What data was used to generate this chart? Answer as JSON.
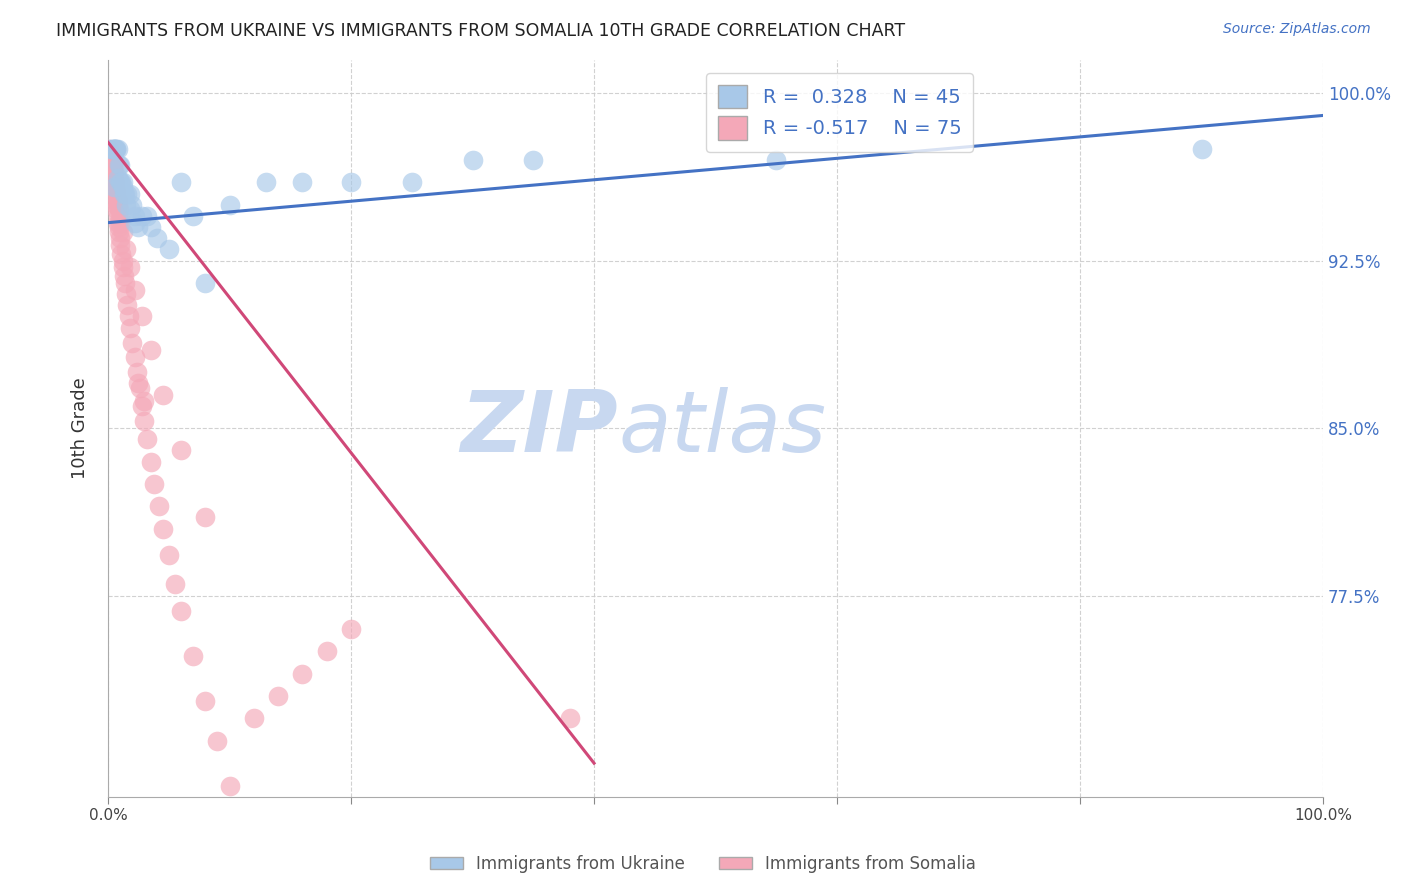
{
  "title": "IMMIGRANTS FROM UKRAINE VS IMMIGRANTS FROM SOMALIA 10TH GRADE CORRELATION CHART",
  "source": "Source: ZipAtlas.com",
  "ylabel": "10th Grade",
  "R_ukraine": 0.328,
  "N_ukraine": 45,
  "R_somalia": -0.517,
  "N_somalia": 75,
  "ukraine_color": "#a8c8e8",
  "somalia_color": "#f4a8b8",
  "ukraine_line_color": "#4472c4",
  "somalia_line_color": "#d04878",
  "watermark_zip": "ZIP",
  "watermark_atlas": "atlas",
  "watermark_color_zip": "#c8d8f0",
  "watermark_color_atlas": "#c8d8f0",
  "ytick_labels": [
    "100.0%",
    "92.5%",
    "85.0%",
    "77.5%"
  ],
  "ytick_values": [
    1.0,
    0.925,
    0.85,
    0.775
  ],
  "xmin": 0.0,
  "xmax": 1.0,
  "ymin": 0.685,
  "ymax": 1.015,
  "ukraine_x": [
    0.002,
    0.003,
    0.004,
    0.005,
    0.005,
    0.006,
    0.006,
    0.007,
    0.007,
    0.008,
    0.009,
    0.01,
    0.01,
    0.011,
    0.012,
    0.013,
    0.014,
    0.015,
    0.016,
    0.018,
    0.02,
    0.022,
    0.025,
    0.028,
    0.032,
    0.035,
    0.04,
    0.05,
    0.06,
    0.07,
    0.08,
    0.1,
    0.13,
    0.16,
    0.2,
    0.25,
    0.3,
    0.35,
    0.55,
    0.9,
    0.005,
    0.008,
    0.012,
    0.018,
    0.022
  ],
  "ukraine_y": [
    0.975,
    0.975,
    0.975,
    0.975,
    0.975,
    0.975,
    0.975,
    0.975,
    0.975,
    0.975,
    0.968,
    0.968,
    0.96,
    0.96,
    0.96,
    0.955,
    0.955,
    0.95,
    0.955,
    0.955,
    0.95,
    0.945,
    0.94,
    0.945,
    0.945,
    0.94,
    0.935,
    0.93,
    0.96,
    0.945,
    0.915,
    0.95,
    0.96,
    0.96,
    0.96,
    0.96,
    0.97,
    0.97,
    0.97,
    0.975,
    0.958,
    0.962,
    0.958,
    0.948,
    0.942
  ],
  "somalia_x": [
    0.001,
    0.002,
    0.003,
    0.003,
    0.004,
    0.004,
    0.005,
    0.005,
    0.006,
    0.006,
    0.007,
    0.007,
    0.008,
    0.008,
    0.009,
    0.009,
    0.01,
    0.01,
    0.011,
    0.012,
    0.012,
    0.013,
    0.014,
    0.015,
    0.016,
    0.017,
    0.018,
    0.02,
    0.022,
    0.024,
    0.026,
    0.028,
    0.03,
    0.032,
    0.035,
    0.038,
    0.042,
    0.045,
    0.05,
    0.055,
    0.06,
    0.07,
    0.08,
    0.09,
    0.1,
    0.12,
    0.14,
    0.16,
    0.18,
    0.2,
    0.003,
    0.004,
    0.005,
    0.006,
    0.007,
    0.008,
    0.009,
    0.01,
    0.012,
    0.015,
    0.018,
    0.022,
    0.028,
    0.035,
    0.045,
    0.06,
    0.08,
    0.38,
    0.025,
    0.03,
    0.004,
    0.005,
    0.006,
    0.008,
    0.01
  ],
  "somalia_y": [
    0.975,
    0.972,
    0.97,
    0.968,
    0.965,
    0.962,
    0.96,
    0.958,
    0.955,
    0.952,
    0.95,
    0.948,
    0.945,
    0.942,
    0.94,
    0.938,
    0.935,
    0.932,
    0.928,
    0.925,
    0.922,
    0.918,
    0.915,
    0.91,
    0.905,
    0.9,
    0.895,
    0.888,
    0.882,
    0.875,
    0.868,
    0.86,
    0.853,
    0.845,
    0.835,
    0.825,
    0.815,
    0.805,
    0.793,
    0.78,
    0.768,
    0.748,
    0.728,
    0.71,
    0.69,
    0.72,
    0.73,
    0.74,
    0.75,
    0.76,
    0.972,
    0.968,
    0.965,
    0.96,
    0.956,
    0.952,
    0.948,
    0.944,
    0.938,
    0.93,
    0.922,
    0.912,
    0.9,
    0.885,
    0.865,
    0.84,
    0.81,
    0.72,
    0.87,
    0.862,
    0.968,
    0.962,
    0.958,
    0.95,
    0.942
  ],
  "uk_line_x0": 0.0,
  "uk_line_x1": 1.0,
  "uk_line_y0": 0.942,
  "uk_line_y1": 0.99,
  "so_line_x0": 0.0,
  "so_line_x1": 0.4,
  "so_line_y0": 0.978,
  "so_line_y1": 0.7
}
